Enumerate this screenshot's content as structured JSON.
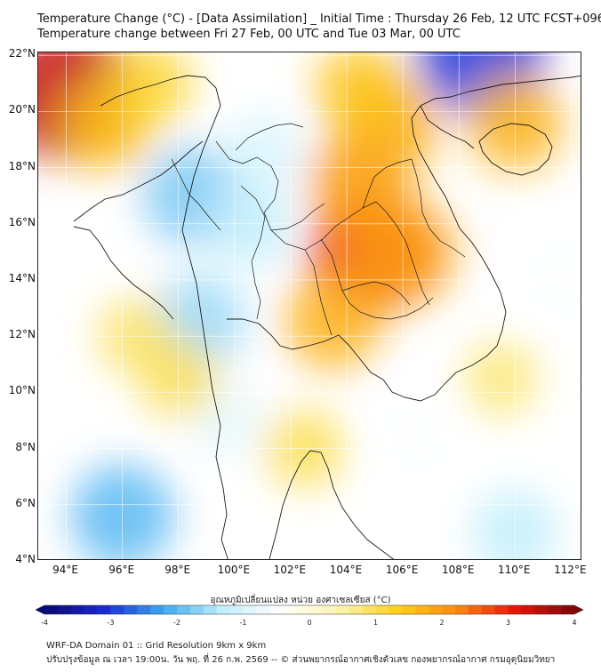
{
  "title_line1": "Temperature Change (°C) - [Data Assimilation] _ Initial Time : Thursday 26 Feb, 12 UTC FCST+096",
  "title_line2": "Temperature change between Fri 27 Feb, 00 UTC and Tue 03 Mar, 00 UTC",
  "map": {
    "lat_labels": [
      {
        "lat": 22,
        "text": "22°N"
      },
      {
        "lat": 20,
        "text": "20°N"
      },
      {
        "lat": 18,
        "text": "18°N"
      },
      {
        "lat": 16,
        "text": "16°N"
      },
      {
        "lat": 14,
        "text": "14°N"
      },
      {
        "lat": 12,
        "text": "12°N"
      },
      {
        "lat": 10,
        "text": "10°N"
      },
      {
        "lat": 8,
        "text": "8°N"
      },
      {
        "lat": 6,
        "text": "6°N"
      },
      {
        "lat": 4,
        "text": "4°N"
      }
    ],
    "lon_labels": [
      {
        "lon": 94,
        "text": "94°E"
      },
      {
        "lon": 96,
        "text": "96°E"
      },
      {
        "lon": 98,
        "text": "98°E"
      },
      {
        "lon": 100,
        "text": "100°E"
      },
      {
        "lon": 102,
        "text": "102°E"
      },
      {
        "lon": 104,
        "text": "104°E"
      },
      {
        "lon": 106,
        "text": "106°E"
      },
      {
        "lon": 108,
        "text": "108°E"
      },
      {
        "lon": 110,
        "text": "110°E"
      },
      {
        "lon": 112,
        "text": "112°E"
      }
    ],
    "lon_range": [
      93,
      112.4
    ],
    "lat_range": [
      4,
      22.1
    ],
    "field_features": [
      {
        "lon": 94.0,
        "lat": 20.7,
        "value": 3.4
      },
      {
        "lon": 95.5,
        "lat": 19.5,
        "value": 1.5
      },
      {
        "lon": 97.0,
        "lat": 21.0,
        "value": 1.2
      },
      {
        "lon": 98.5,
        "lat": 17.0,
        "value": -1.8
      },
      {
        "lon": 98.7,
        "lat": 12.5,
        "value": -1.6
      },
      {
        "lon": 100.5,
        "lat": 16.0,
        "value": -1.3
      },
      {
        "lon": 101.0,
        "lat": 18.5,
        "value": -1.0
      },
      {
        "lon": 99.7,
        "lat": 9.0,
        "value": -0.8
      },
      {
        "lon": 104.8,
        "lat": 14.9,
        "value": 2.8
      },
      {
        "lon": 104.5,
        "lat": 17.5,
        "value": 2.0
      },
      {
        "lon": 106.0,
        "lat": 15.0,
        "value": 2.0
      },
      {
        "lon": 103.5,
        "lat": 12.5,
        "value": 1.7
      },
      {
        "lon": 105.5,
        "lat": 19.5,
        "value": 1.8
      },
      {
        "lon": 104.5,
        "lat": 20.8,
        "value": 1.5
      },
      {
        "lon": 108.8,
        "lat": 22.1,
        "value": -3.0
      },
      {
        "lon": 110.0,
        "lat": 19.6,
        "value": 1.7
      },
      {
        "lon": 96.0,
        "lat": 5.6,
        "value": -2.0
      },
      {
        "lon": 110.0,
        "lat": 5.0,
        "value": -1.3
      },
      {
        "lon": 106.5,
        "lat": 8.5,
        "value": -0.5
      },
      {
        "lon": 98.0,
        "lat": 10.5,
        "value": 1.0
      },
      {
        "lon": 96.5,
        "lat": 12.0,
        "value": 0.9
      },
      {
        "lon": 102.5,
        "lat": 8.0,
        "value": 1.0
      },
      {
        "lon": 109.5,
        "lat": 10.5,
        "value": 0.8
      },
      {
        "lon": 111.5,
        "lat": 14.0,
        "value": -0.5
      }
    ]
  },
  "colorbar": {
    "title": "อุณหภูมิเปลี่ยนแปลง หน่วย องศาเซลเซียส (°C)",
    "min": -4,
    "max": 4,
    "ticks": [
      "-4",
      "-3",
      "-2",
      "-1",
      "0",
      "1",
      "2",
      "3",
      "4"
    ],
    "colors": [
      "#08086e",
      "#1a28d4",
      "#3aa6f0",
      "#bfeefb",
      "#ffffff",
      "#fbf4b0",
      "#fdd016",
      "#fc8a10",
      "#e8140a",
      "#7a0808"
    ]
  },
  "footer_line1": "WRF-DA Domain 01 :: Grid Resolution 9km x 9km",
  "footer_line2": "ปรับปรุงข้อมูล ณ เวลา 19:00น. วัน พฤ. ที่ 26 ก.พ. 2569 -- © ส่วนพยากรณ์อากาศเชิงตัวเลข กองพยากรณ์อากาศ กรมอุตุนิยมวิทยา"
}
